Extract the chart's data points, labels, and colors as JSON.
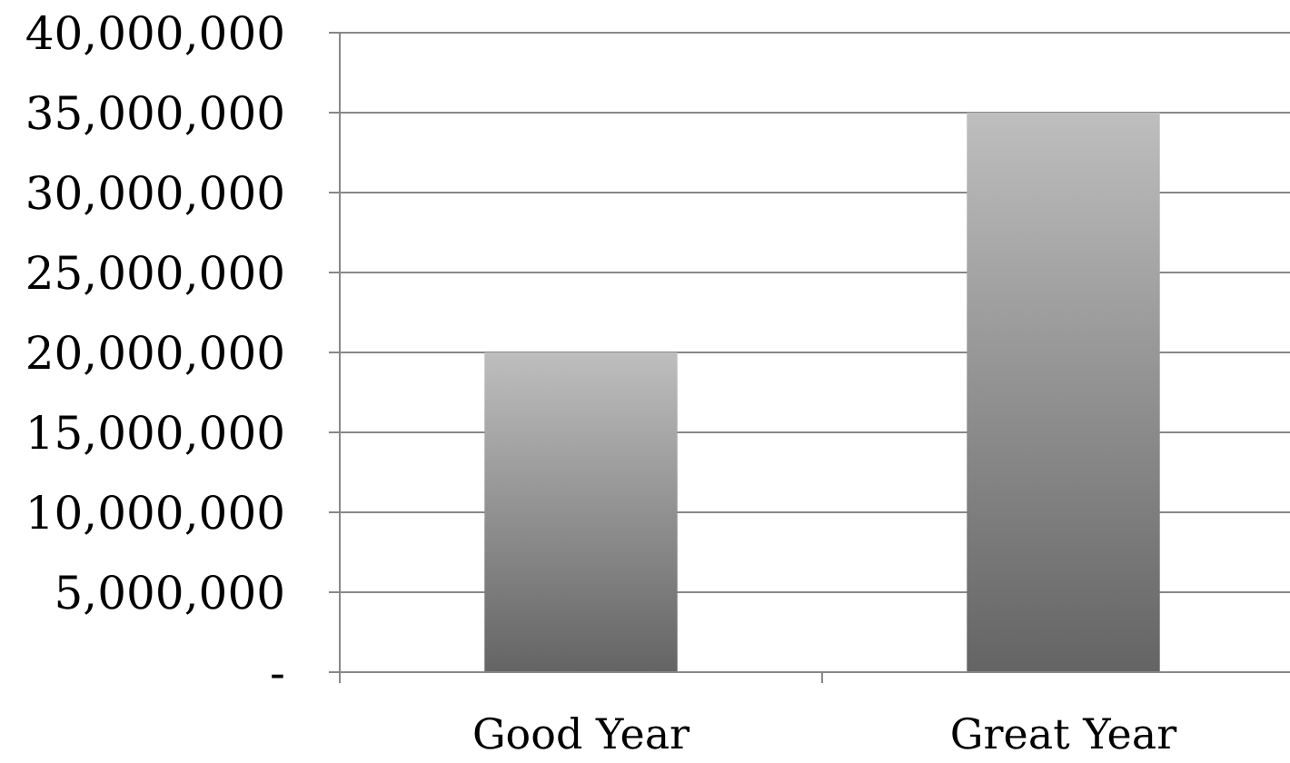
{
  "chart_data": {
    "type": "bar",
    "categories": [
      "Good Year",
      "Great Year"
    ],
    "values": [
      20000000,
      35000000
    ],
    "color": "#8a8a8a",
    "ylim": [
      0,
      40000000
    ],
    "yticks": [
      {
        "value": 0,
        "label": "-"
      },
      {
        "value": 5000000,
        "label": "5,000,000"
      },
      {
        "value": 10000000,
        "label": "10,000,000"
      },
      {
        "value": 15000000,
        "label": "15,000,000"
      },
      {
        "value": 20000000,
        "label": "20,000,000"
      },
      {
        "value": 25000000,
        "label": "25,000,000"
      },
      {
        "value": 30000000,
        "label": "30,000,000"
      },
      {
        "value": 35000000,
        "label": "35,000,000"
      },
      {
        "value": 40000000,
        "label": "40,000,000"
      }
    ],
    "grid": "y"
  }
}
